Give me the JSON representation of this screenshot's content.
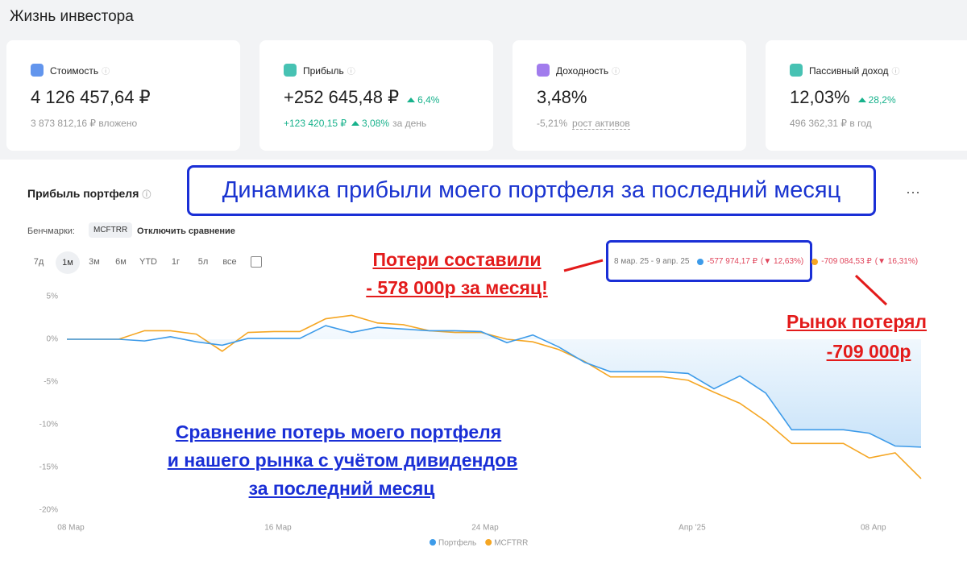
{
  "header": {
    "title": "Жизнь инвестора"
  },
  "cards": [
    {
      "title": "Стоимость",
      "value": "4 126 457,64 ₽",
      "sub": "3 873 812,16 ₽ вложено"
    },
    {
      "title": "Прибыль",
      "value": "+252 645,48 ₽",
      "change": "6,4%",
      "sub_value": "+123 420,15 ₽",
      "sub_change": "3,08%",
      "sub": "за день"
    },
    {
      "title": "Доходность",
      "value": "3,48%",
      "sub_value": "-5,21%",
      "sub": "рост активов"
    },
    {
      "title": "Пассивный доход",
      "value": "12,03%",
      "change": "28,2%",
      "sub": "496 362,31 ₽ в год"
    }
  ],
  "section": {
    "title": "Прибыль портфеля",
    "benchmarks_label": "Бенчмарки:",
    "benchmark": "MCFTRR",
    "disable": "Отключить сравнение",
    "periods": [
      "7д",
      "1м",
      "3м",
      "6м",
      "YTD",
      "1г",
      "5л",
      "все"
    ],
    "tooltip": {
      "range": "8 мар. 25 - 9 апр. 25",
      "items": [
        {
          "value": "-577 974,17 ₽",
          "change": "(▼ 12,63%)"
        },
        {
          "value": "-709 084,53 ₽",
          "change": "(▼ 16,31%)"
        }
      ]
    }
  },
  "annotations": {
    "headline": "Динамика прибыли моего портфеля за последний месяц",
    "loss": [
      "Потери составили",
      "- 578 000р за месяц!"
    ],
    "market": [
      "Рынок потерял",
      "-709 000р"
    ],
    "comparison": [
      "Сравнение потерь моего портфеля",
      "и нашего рынка с учётом дивидендов",
      "за последний месяц"
    ]
  },
  "chart_data": {
    "type": "line",
    "categories": [
      "08 Мар",
      null,
      null,
      null,
      null,
      null,
      null,
      null,
      "16 Мар",
      null,
      null,
      null,
      null,
      null,
      null,
      null,
      "24 Мар",
      null,
      null,
      null,
      null,
      null,
      null,
      null,
      "Апр '25",
      null,
      null,
      null,
      null,
      null,
      null,
      "08 Апр",
      null,
      null
    ],
    "series": [
      {
        "name": "Портфель",
        "color": "#3d9be9",
        "values": [
          0,
          0,
          0,
          -0.2,
          0.3,
          -0.3,
          -0.7,
          0.1,
          0.1,
          0.1,
          1.6,
          0.8,
          1.4,
          1.2,
          1.0,
          1.0,
          0.9,
          -0.4,
          0.5,
          -0.9,
          -2.7,
          -3.8,
          -3.8,
          -3.8,
          -4.0,
          -5.8,
          -4.3,
          -6.3,
          -10.6,
          -10.6,
          -10.6,
          -11.0,
          -12.5,
          -12.63
        ]
      },
      {
        "name": "MCFTRR",
        "color": "#f5a623",
        "values": [
          0,
          0,
          0,
          1.0,
          1.0,
          0.6,
          -1.4,
          0.8,
          0.9,
          0.9,
          2.4,
          2.8,
          1.9,
          1.7,
          1.0,
          0.8,
          0.8,
          0,
          -0.3,
          -1.2,
          -2.6,
          -4.4,
          -4.4,
          -4.4,
          -4.8,
          -6.2,
          -7.5,
          -9.6,
          -12.2,
          -12.2,
          -12.2,
          -13.9,
          -13.3,
          -16.31
        ]
      }
    ],
    "ylim": [
      -20,
      5
    ],
    "yticks": [
      {
        "value": 5,
        "label": "5%"
      },
      {
        "value": 0,
        "label": "0%"
      },
      {
        "value": -5,
        "label": "-5%"
      },
      {
        "value": -10,
        "label": "-10%"
      },
      {
        "value": -15,
        "label": "-15%"
      },
      {
        "value": -20,
        "label": "-20%"
      }
    ],
    "grid": false,
    "legend": "bottom"
  }
}
